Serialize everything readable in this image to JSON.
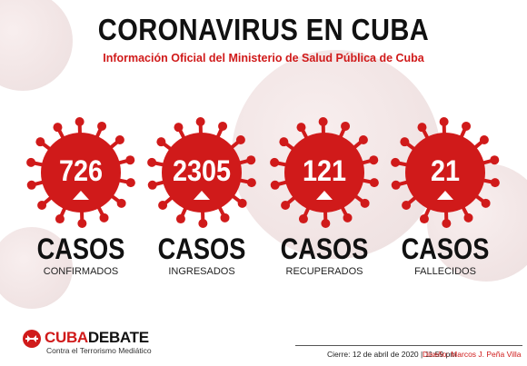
{
  "header": {
    "title": "CORONAVIRUS EN CUBA",
    "subtitle": "Información Oficial del Ministerio de Salud Pública de Cuba"
  },
  "stats": [
    {
      "value": "726",
      "label": "CASOS",
      "sublabel": "CONFIRMADOS"
    },
    {
      "value": "2305",
      "label": "CASOS",
      "sublabel": "INGRESADOS"
    },
    {
      "value": "121",
      "label": "CASOS",
      "sublabel": "RECUPERADOS"
    },
    {
      "value": "21",
      "label": "CASOS",
      "sublabel": "FALLECIDOS"
    }
  ],
  "logo": {
    "part1": "CUBA",
    "part2": "DEBATE",
    "tagline": "Contra el Terrorismo Mediático"
  },
  "footer": {
    "date": "Cierre: 12 de abril de 2020 | 11:59 pm",
    "design": "Diseño: Marcos J. Peña Villa"
  },
  "colors": {
    "accent": "#d01a1a",
    "text": "#111111"
  },
  "icons": {
    "virus": "virus-icon",
    "trend": "triangle-up-icon"
  }
}
